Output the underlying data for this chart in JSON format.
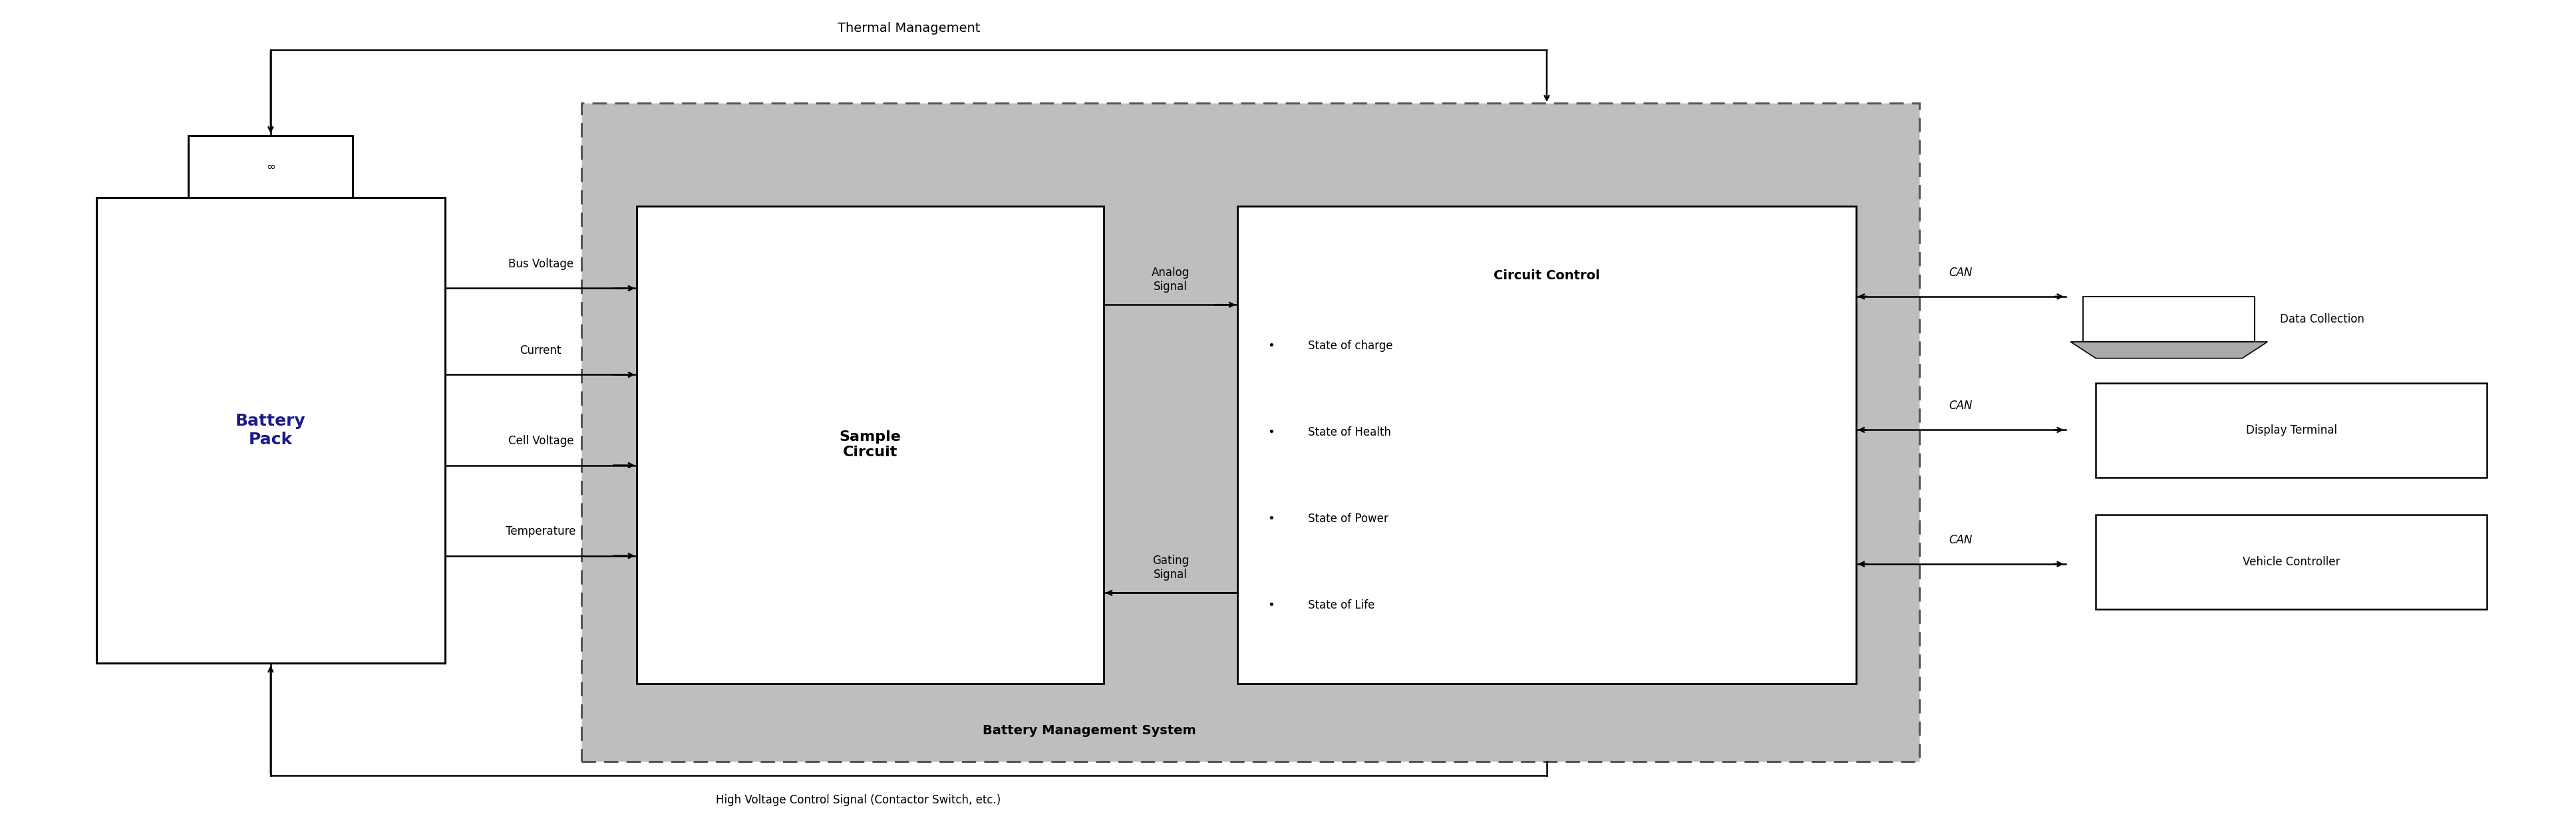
{
  "fig_width": 38.72,
  "fig_height": 12.63,
  "bg_color": "#ffffff",
  "bms_bg_color": "#bebebe",
  "sample_circuit_label": "Sample\nCircuit",
  "circuit_control_label": "Circuit Control",
  "circuit_control_bullets": [
    "State of charge",
    "State of Health",
    "State of Power",
    "State of Life"
  ],
  "bms_label": "Battery Management System",
  "thermal_label": "Thermal Management",
  "high_voltage_label": "High Voltage Control Signal (Contactor Switch, etc.)",
  "bus_voltage_label": "Bus Voltage",
  "current_label": "Current",
  "cell_voltage_label": "Cell Voltage",
  "temperature_label": "Temperature",
  "analog_signal_label": "Analog\nSignal",
  "gating_signal_label": "Gating\nSignal",
  "can_label": "CAN",
  "data_collection_label": "Data Collection",
  "display_terminal_label": "Display Terminal",
  "vehicle_controller_label": "Vehicle Controller",
  "battery_pack_label": "Battery\nPack",
  "bold_color": "#1a1a8c",
  "dashed_color": "#555555"
}
